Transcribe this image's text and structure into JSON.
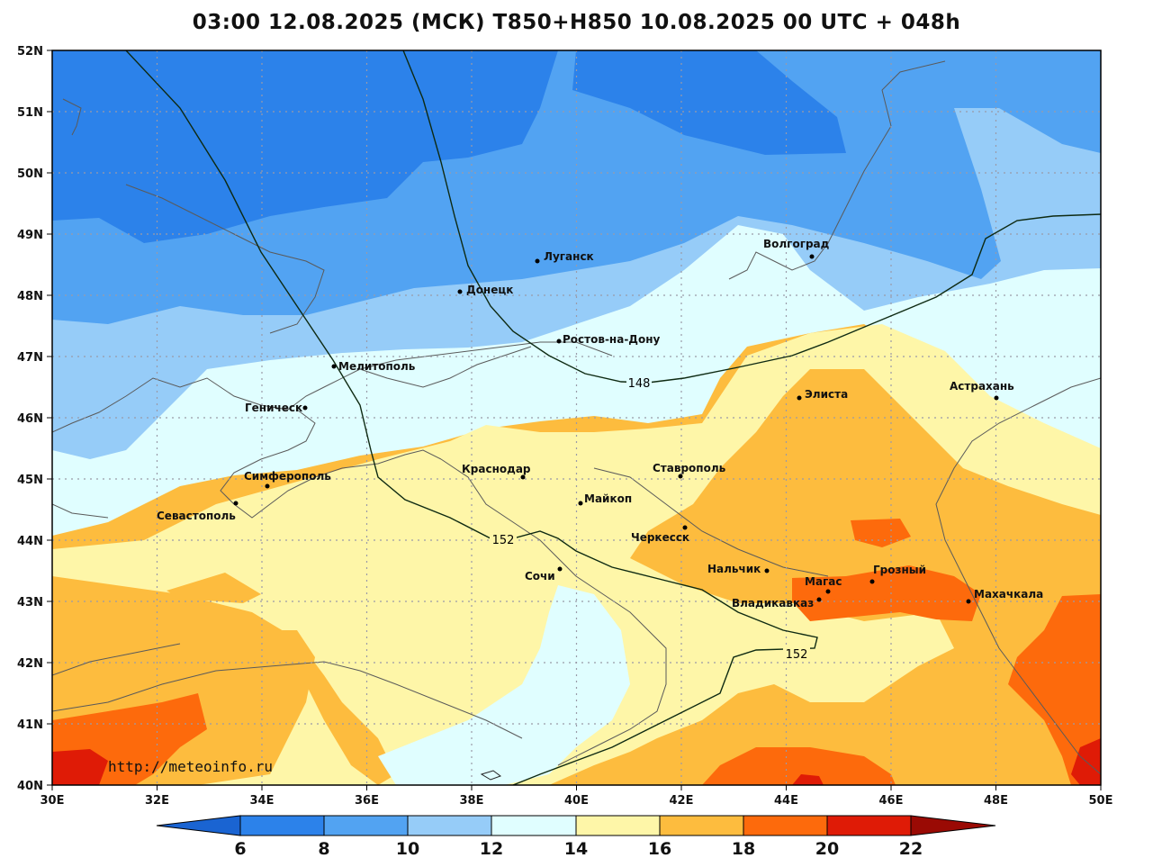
{
  "title": "03:00 12.08.2025 (МСК) T850+H850 10.08.2025 00 UTC + 048h",
  "watermark": "http://meteoinfo.ru",
  "lat_labels": [
    "52N",
    "51N",
    "50N",
    "49N",
    "48N",
    "47N",
    "46N",
    "45N",
    "44N",
    "43N",
    "42N",
    "41N",
    "40N"
  ],
  "lon_labels": [
    "30E",
    "32E",
    "34E",
    "36E",
    "38E",
    "40E",
    "42E",
    "44E",
    "46E",
    "48E",
    "50E"
  ],
  "colorbar": {
    "ticks": [
      "6",
      "8",
      "10",
      "12",
      "14",
      "16",
      "18",
      "20",
      "22"
    ],
    "colors": [
      "#1a64d2",
      "#2c82ea",
      "#52a3f2",
      "#96ccf8",
      "#e0feff",
      "#fef6a8",
      "#fdbc3e",
      "#fd6a0c",
      "#df1b06",
      "#9a0a04"
    ]
  },
  "contours": {
    "h148": "148",
    "h152a": "152",
    "h152b": "152"
  },
  "cities": [
    {
      "name": "Волгоград"
    },
    {
      "name": "Луганск"
    },
    {
      "name": "Донецк"
    },
    {
      "name": "Ростов-на-Дону"
    },
    {
      "name": "Мелитополь"
    },
    {
      "name": "Геническ"
    },
    {
      "name": "Элиста"
    },
    {
      "name": "Астрахань"
    },
    {
      "name": "Симферополь"
    },
    {
      "name": "Краснодар"
    },
    {
      "name": "Ставрополь"
    },
    {
      "name": "Майкоп"
    },
    {
      "name": "Севастополь"
    },
    {
      "name": "Черкесск"
    },
    {
      "name": "Нальчик"
    },
    {
      "name": "Сочи"
    },
    {
      "name": "Грозный"
    },
    {
      "name": "Магас"
    },
    {
      "name": "Махачкала"
    },
    {
      "name": "Владикавказ"
    }
  ]
}
